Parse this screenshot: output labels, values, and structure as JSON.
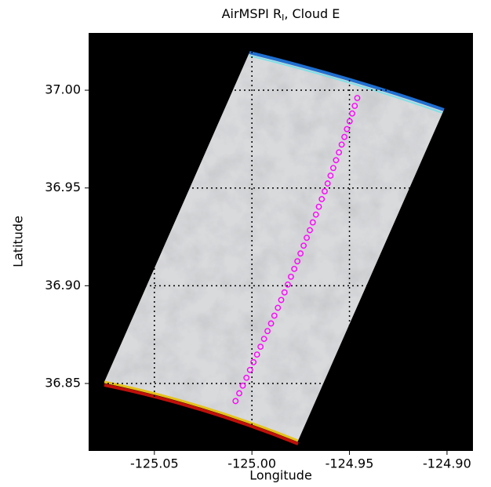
{
  "chart_data": {
    "type": "scatter",
    "title": [
      "AirMSPI R",
      "I",
      ", Cloud E"
    ],
    "xlabel": "Longitude",
    "ylabel": "Latitude",
    "xlim": [
      -125.0837,
      -124.8867
    ],
    "ylim": [
      36.8155,
      37.0293
    ],
    "xticks": [
      -125.05,
      {
        "value": -125.0,
        "label": "-125.00"
      },
      -124.95,
      {
        "value": -124.9,
        "label": "-124.90"
      }
    ],
    "yticks": [
      36.85,
      {
        "value": 36.9,
        "label": "36.90"
      },
      36.95,
      {
        "value": 37.0,
        "label": "37.00"
      }
    ],
    "grid": true,
    "color": "#ff00ff",
    "x": [
      -125.0084,
      -125.0065,
      -125.0047,
      -125.0028,
      -125.001,
      -124.9992,
      -124.9974,
      -124.9956,
      -124.9938,
      -124.992,
      -124.9902,
      -124.9885,
      -124.9867,
      -124.985,
      -124.9833,
      -124.9816,
      -124.98,
      -124.9783,
      -124.9767,
      -124.9751,
      -124.9735,
      -124.9719,
      -124.9703,
      -124.9688,
      -124.9672,
      -124.9657,
      -124.9642,
      -124.9627,
      -124.9612,
      -124.9597,
      -124.9583,
      -124.9569,
      -124.9554,
      -124.954,
      -124.9526,
      -124.9513,
      -124.9499,
      -124.9486,
      -124.9473,
      -124.946
    ],
    "values": [
      36.841,
      36.845,
      36.8489,
      36.8529,
      36.8569,
      36.8609,
      36.8648,
      36.8688,
      36.8728,
      36.8768,
      36.8807,
      36.8847,
      36.8887,
      36.8927,
      36.8966,
      36.9006,
      36.9046,
      36.9086,
      36.9125,
      36.9165,
      36.9205,
      36.9245,
      36.9284,
      36.9324,
      36.9364,
      36.9404,
      36.9443,
      36.9483,
      36.9523,
      36.9563,
      36.9602,
      36.9642,
      36.9682,
      36.9722,
      36.9761,
      36.9801,
      36.9841,
      36.9881,
      36.992,
      36.996
    ]
  }
}
